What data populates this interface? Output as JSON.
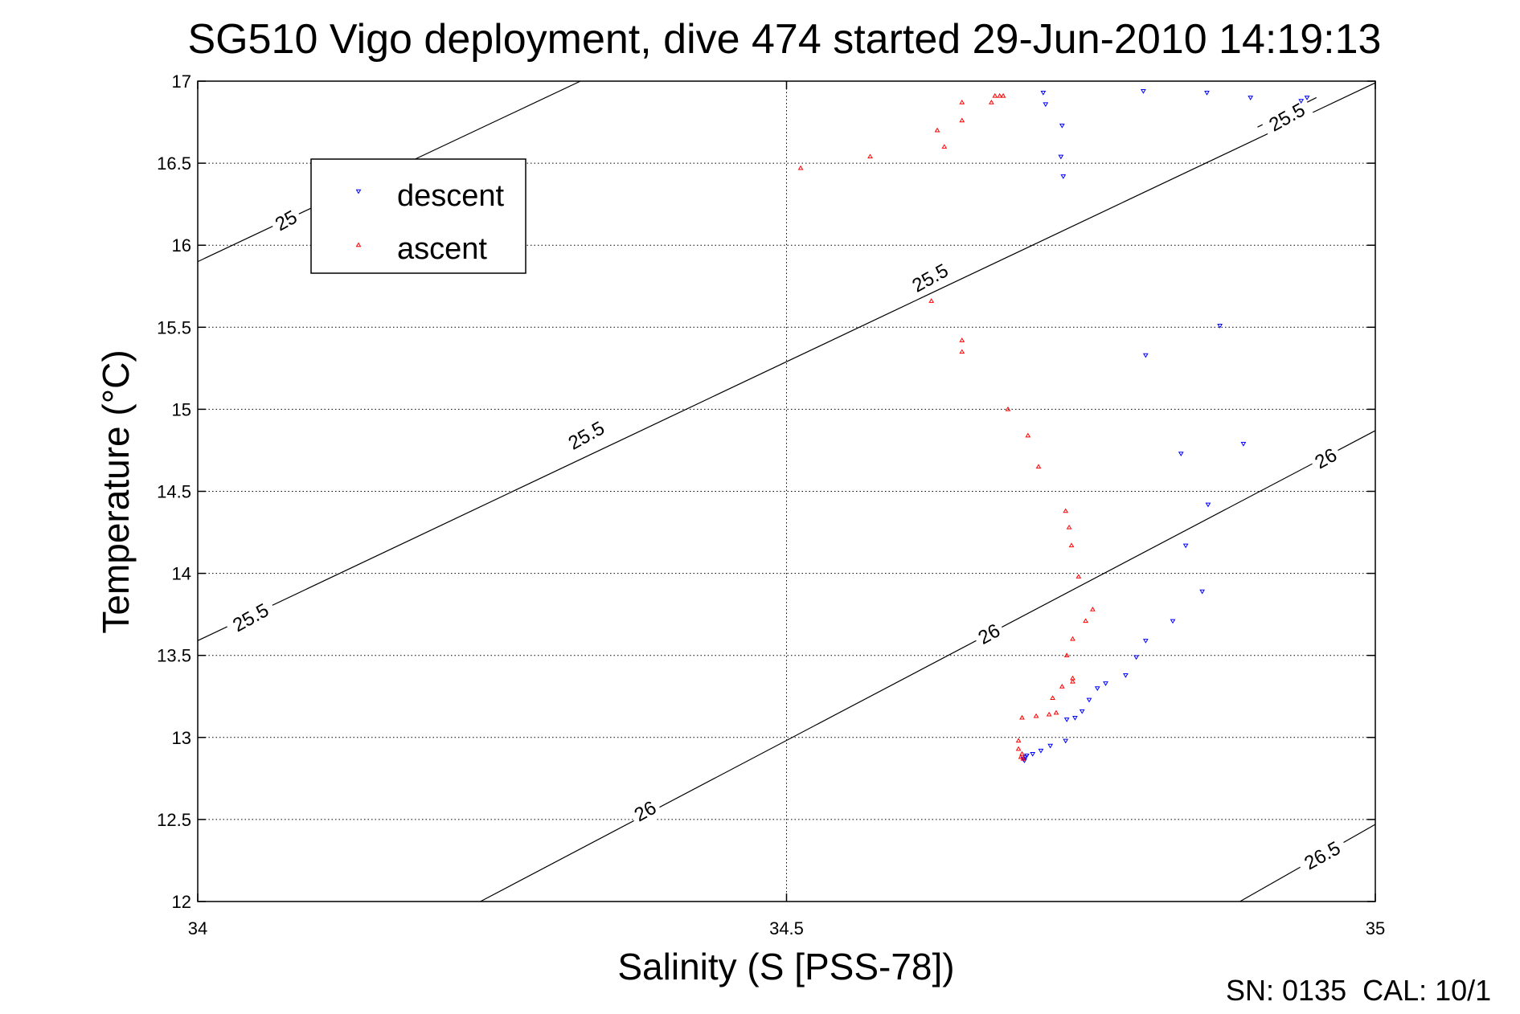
{
  "chart_data": {
    "type": "scatter",
    "title": "SG510 Vigo deployment, dive 474 started 29-Jun-2010 14:19:13",
    "xlabel": "Salinity (S [PSS-78])",
    "ylabel": "Temperature (°C)",
    "xlim": [
      34,
      35
    ],
    "ylim": [
      12,
      17
    ],
    "x_ticks": [
      "34",
      "34.5",
      "35"
    ],
    "y_ticks": [
      "12",
      "12.5",
      "13",
      "13.5",
      "14",
      "14.5",
      "15",
      "15.5",
      "16",
      "16.5",
      "17"
    ],
    "grid": true,
    "legend_position": "top-left",
    "footer": "SN: 0135  CAL: 10/1",
    "series": [
      {
        "name": "descent",
        "color": "#0000ff",
        "marker": "triangle-down",
        "points": [
          [
            34.718,
            16.93
          ],
          [
            34.72,
            16.86
          ],
          [
            34.734,
            16.73
          ],
          [
            34.733,
            16.54
          ],
          [
            34.735,
            16.42
          ],
          [
            34.803,
            16.94
          ],
          [
            34.857,
            16.93
          ],
          [
            34.894,
            16.9
          ],
          [
            34.937,
            16.88
          ],
          [
            34.942,
            16.9
          ],
          [
            34.868,
            15.51
          ],
          [
            34.805,
            15.33
          ],
          [
            34.835,
            14.73
          ],
          [
            34.888,
            14.79
          ],
          [
            34.858,
            14.42
          ],
          [
            34.839,
            14.17
          ],
          [
            34.853,
            13.89
          ],
          [
            34.828,
            13.71
          ],
          [
            34.805,
            13.59
          ],
          [
            34.797,
            13.49
          ],
          [
            34.788,
            13.38
          ],
          [
            34.771,
            13.33
          ],
          [
            34.764,
            13.3
          ],
          [
            34.757,
            13.23
          ],
          [
            34.751,
            13.16
          ],
          [
            34.745,
            13.12
          ],
          [
            34.738,
            13.11
          ],
          [
            34.737,
            12.98
          ],
          [
            34.724,
            12.95
          ],
          [
            34.716,
            12.92
          ],
          [
            34.709,
            12.9
          ],
          [
            34.704,
            12.89
          ],
          [
            34.703,
            12.88
          ],
          [
            34.701,
            12.87
          ],
          [
            34.702,
            12.86
          ]
        ]
      },
      {
        "name": "ascent",
        "color": "#ff0000",
        "marker": "triangle-up",
        "points": [
          [
            34.512,
            16.47
          ],
          [
            34.571,
            16.54
          ],
          [
            34.628,
            16.7
          ],
          [
            34.634,
            16.6
          ],
          [
            34.649,
            16.87
          ],
          [
            34.649,
            16.76
          ],
          [
            34.674,
            16.87
          ],
          [
            34.677,
            16.91
          ],
          [
            34.681,
            16.91
          ],
          [
            34.684,
            16.91
          ],
          [
            34.623,
            15.66
          ],
          [
            34.649,
            15.42
          ],
          [
            34.649,
            15.35
          ],
          [
            34.688,
            15.0
          ],
          [
            34.705,
            14.84
          ],
          [
            34.714,
            14.65
          ],
          [
            34.737,
            14.38
          ],
          [
            34.74,
            14.28
          ],
          [
            34.742,
            14.17
          ],
          [
            34.748,
            13.98
          ],
          [
            34.76,
            13.78
          ],
          [
            34.754,
            13.71
          ],
          [
            34.743,
            13.6
          ],
          [
            34.738,
            13.5
          ],
          [
            34.743,
            13.36
          ],
          [
            34.743,
            13.34
          ],
          [
            34.734,
            13.31
          ],
          [
            34.726,
            13.24
          ],
          [
            34.729,
            13.15
          ],
          [
            34.723,
            13.14
          ],
          [
            34.712,
            13.13
          ],
          [
            34.7,
            13.12
          ],
          [
            34.697,
            12.98
          ],
          [
            34.697,
            12.93
          ],
          [
            34.7,
            12.9
          ],
          [
            34.699,
            12.88
          ],
          [
            34.701,
            12.87
          ]
        ]
      }
    ],
    "density_contours": [
      {
        "label": "25",
        "points": [
          [
            34,
            15.9
          ],
          [
            34.325,
            17.0
          ]
        ]
      },
      {
        "label": "25.5",
        "points": [
          [
            34,
            13.59
          ],
          [
            35,
            16.99
          ]
        ]
      },
      {
        "label": "25.5",
        "points": [
          [
            34.9,
            16.72
          ],
          [
            34.95,
            16.9
          ]
        ]
      },
      {
        "label": "26",
        "points": [
          [
            34.24,
            12.0
          ],
          [
            35,
            14.87
          ]
        ]
      },
      {
        "label": "26.5",
        "points": [
          [
            34.885,
            12.0
          ],
          [
            35,
            12.47
          ]
        ]
      }
    ],
    "contour_labels": [
      {
        "text": "25",
        "x": 34.075,
        "y": 16.15,
        "angle": -29
      },
      {
        "text": "25.5",
        "x": 34.045,
        "y": 13.73,
        "angle": -29
      },
      {
        "text": "25.5",
        "x": 34.33,
        "y": 14.84,
        "angle": -29
      },
      {
        "text": "25.5",
        "x": 34.622,
        "y": 15.8,
        "angle": -29
      },
      {
        "text": "25.5",
        "x": 34.925,
        "y": 16.78,
        "angle": -29
      },
      {
        "text": "26",
        "x": 34.38,
        "y": 12.55,
        "angle": -29
      },
      {
        "text": "26",
        "x": 34.672,
        "y": 13.63,
        "angle": -29
      },
      {
        "text": "26",
        "x": 34.958,
        "y": 14.7,
        "angle": -29
      },
      {
        "text": "26.5",
        "x": 34.955,
        "y": 12.28,
        "angle": -29
      }
    ]
  }
}
